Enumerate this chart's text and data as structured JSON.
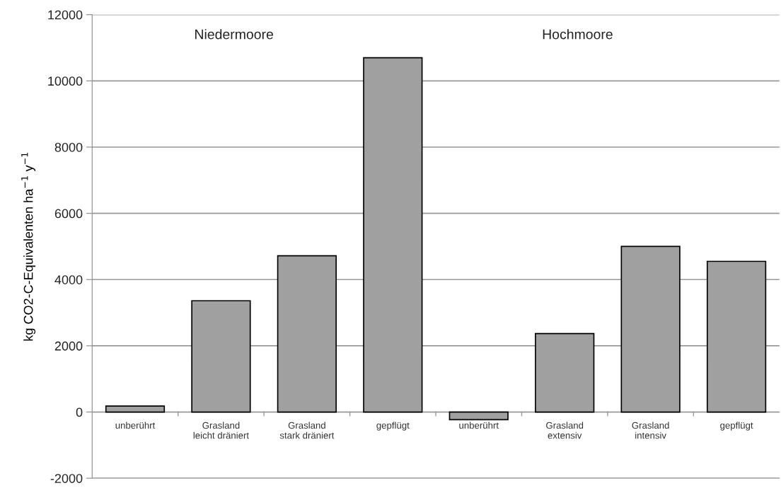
{
  "chart_data": {
    "type": "bar",
    "ylabel": "kg CO2-C-Equivalenten ha$^{−1}$ y$^{−1}$",
    "categories": [
      "unberührt",
      "Grasland\nleicht dräniert",
      "Grasland\nstark dräniert",
      "gepflügt",
      "unberührt",
      "Grasland\nextensiv",
      "Grasland\nintensiv",
      "gepflügt"
    ],
    "values": [
      180,
      3360,
      4720,
      10700,
      -230,
      2370,
      5000,
      4550
    ],
    "color": "#a0a0a0",
    "ylim": [
      -2000,
      12000
    ],
    "yticks": [
      -2000,
      0,
      2000,
      4000,
      6000,
      8000,
      10000,
      12000
    ],
    "grid": "y",
    "annotations": [
      "Niedermoore",
      "Hochmoore"
    ]
  }
}
